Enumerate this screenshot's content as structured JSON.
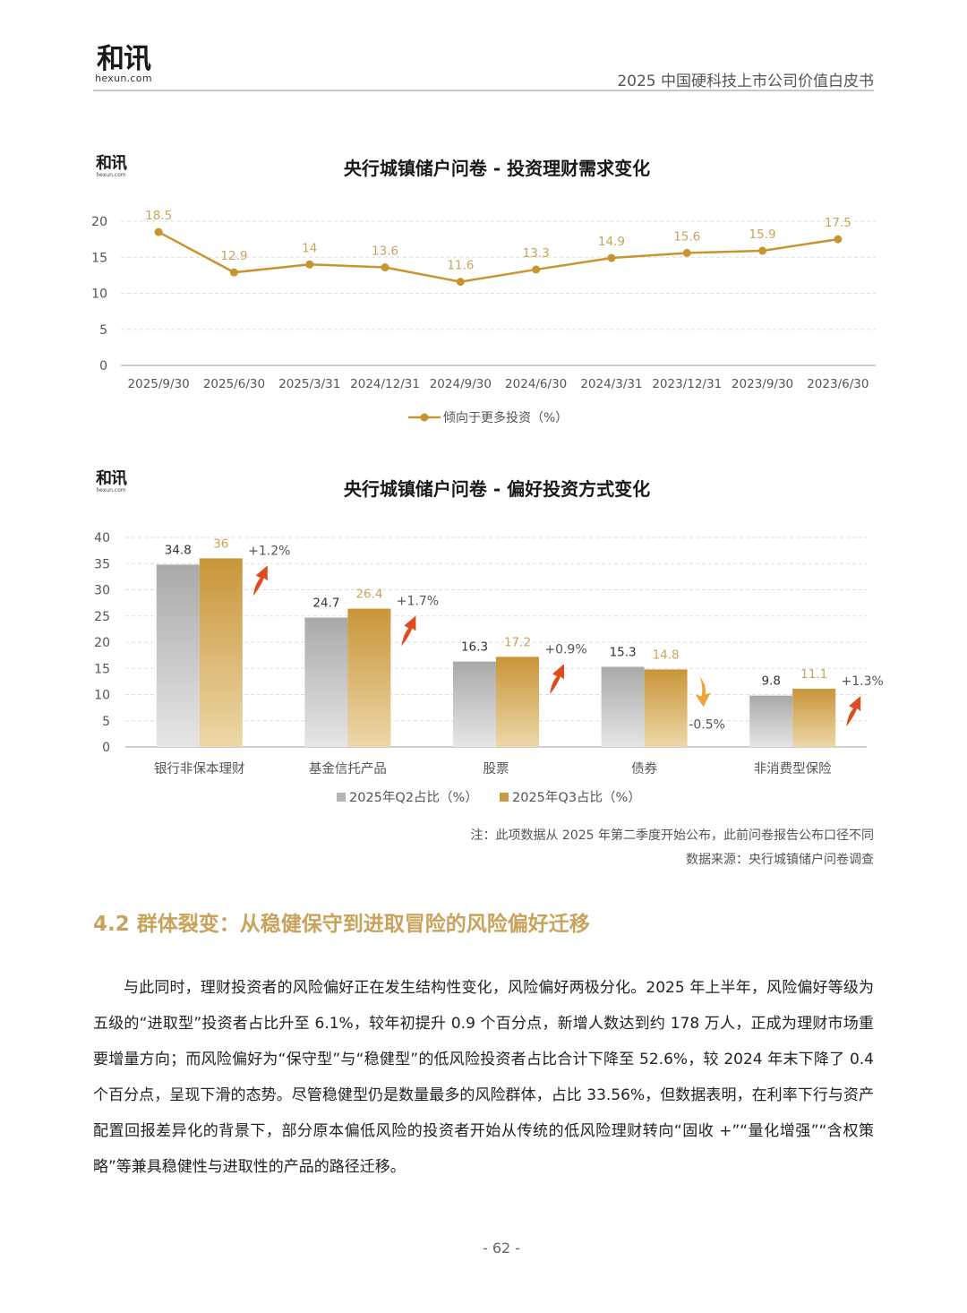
{
  "header": {
    "logo_cn": "和讯",
    "logo_en": "hexun.com",
    "doc_title": "2025 中国硬科技上市公司价值白皮书"
  },
  "colors": {
    "gold": "#c9a35c",
    "gold_dark": "#c99430",
    "gray_bar": "#bdbdbd",
    "arrow_up": "#e04a1f",
    "arrow_down": "#f0a33a",
    "grid": "#dedede"
  },
  "chart_data": [
    {
      "type": "line",
      "title": "央行城镇储户问卷 - 投资理财需求变化",
      "categories": [
        "2025/9/30",
        "2025/6/30",
        "2025/3/31",
        "2024/12/31",
        "2024/9/30",
        "2024/6/30",
        "2024/3/31",
        "2023/12/31",
        "2023/9/30",
        "2023/6/30"
      ],
      "series": [
        {
          "name": "倾向于更多投资（%）",
          "values": [
            18.5,
            12.9,
            14,
            13.6,
            11.6,
            13.3,
            14.9,
            15.6,
            15.9,
            17.5
          ]
        }
      ],
      "ylim": [
        0,
        20
      ],
      "yticks": [
        0,
        5,
        10,
        15,
        20
      ],
      "grid": true,
      "legend": "bottom"
    },
    {
      "type": "bar",
      "title": "央行城镇储户问卷 - 偏好投资方式变化",
      "categories": [
        "银行非保本理财",
        "基金信托产品",
        "股票",
        "债券",
        "非消费型保险"
      ],
      "series": [
        {
          "name": "2025年Q2占比（%）",
          "values": [
            34.8,
            24.7,
            16.3,
            15.3,
            9.8
          ]
        },
        {
          "name": "2025年Q3占比（%）",
          "values": [
            36,
            26.4,
            17.2,
            14.8,
            11.1
          ]
        }
      ],
      "changes": [
        "+1.2%",
        "+1.7%",
        "+0.9%",
        "-0.5%",
        "+1.3%"
      ],
      "ylim": [
        0,
        40
      ],
      "yticks": [
        0,
        5,
        10,
        15,
        20,
        25,
        30,
        35,
        40
      ],
      "grid": true,
      "legend": "bottom"
    }
  ],
  "notes": {
    "note": "注：此项数据从 2025 年第二季度开始公布，此前问卷报告公布口径不同",
    "source": "数据来源：央行城镇储户问卷调查"
  },
  "section": {
    "heading": "4.2 群体裂变：从稳健保守到进取冒险的风险偏好迁移",
    "paragraph": "与此同时，理财投资者的风险偏好正在发生结构性变化，风险偏好两极分化。2025 年上半年，风险偏好等级为五级的“进取型”投资者占比升至 6.1%，较年初提升 0.9 个百分点，新增人数达到约 178 万人，正成为理财市场重要增量方向；而风险偏好为“保守型”与“稳健型”的低风险投资者占比合计下降至 52.6%，较 2024 年末下降了 0.4 个百分点，呈现下滑的态势。尽管稳健型仍是数量最多的风险群体，占比 33.56%，但数据表明，在利率下行与资产配置回报差异化的背景下，部分原本偏低风险的投资者开始从传统的低风险理财转向“固收 +”“量化增强”“含权策略”等兼具稳健性与进取性的产品的路径迁移。"
  },
  "footer": {
    "page_number": "- 62 -"
  }
}
